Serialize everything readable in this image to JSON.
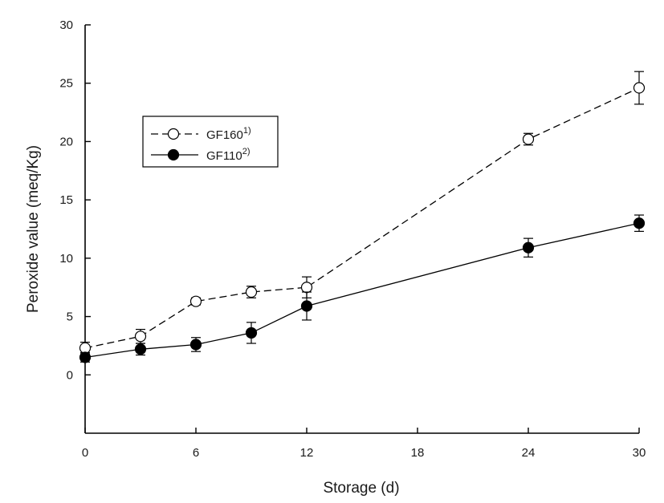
{
  "chart_data": {
    "type": "line",
    "title": "",
    "xlabel": "Storage (d)",
    "ylabel": "Peroxide value (meq/Kg)",
    "xlim": [
      0,
      30
    ],
    "ylim": [
      -5,
      30
    ],
    "x_ticks": [
      0,
      6,
      12,
      18,
      24,
      30
    ],
    "y_ticks": [
      0,
      5,
      10,
      15,
      20,
      25,
      30
    ],
    "grid": false,
    "legend_position": "upper-left",
    "series": [
      {
        "name": "GF160",
        "name_superscript": "1)",
        "marker": "open-circle",
        "line_style": "dashed",
        "color": "#000000",
        "x": [
          0,
          3,
          6,
          9,
          12,
          24,
          30
        ],
        "y": [
          2.3,
          3.3,
          6.3,
          7.1,
          7.5,
          20.2,
          24.6
        ],
        "error": [
          0.5,
          0.6,
          0.3,
          0.5,
          0.9,
          0.5,
          1.4
        ]
      },
      {
        "name": "GF110",
        "name_superscript": "2)",
        "marker": "filled-circle",
        "line_style": "solid",
        "color": "#000000",
        "x": [
          0,
          3,
          6,
          9,
          12,
          24,
          30
        ],
        "y": [
          1.5,
          2.2,
          2.6,
          3.6,
          5.9,
          10.9,
          13.0
        ],
        "error": [
          0.4,
          0.5,
          0.6,
          0.9,
          1.2,
          0.8,
          0.7
        ]
      }
    ]
  }
}
